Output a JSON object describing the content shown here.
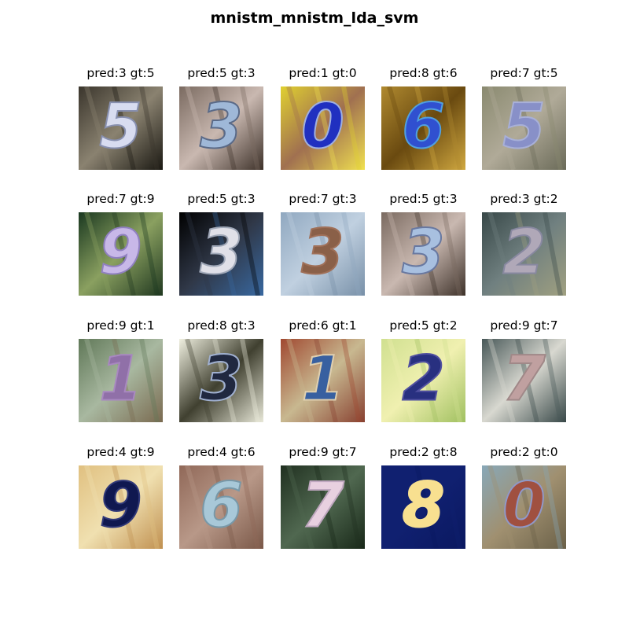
{
  "title": "mnistm_mnistm_lda_svm",
  "samples": [
    {
      "label": "pred:3 gt:5",
      "digit": "5",
      "bg": [
        "#3a352c",
        "#8a8270",
        "#1a1812"
      ],
      "fg": "#d8dcf0",
      "stroke": "#8890b0"
    },
    {
      "label": "pred:5 gt:3",
      "digit": "3",
      "bg": [
        "#7a6a60",
        "#c9b8b0",
        "#3d3129"
      ],
      "fg": "#9fb8d8",
      "stroke": "#5a6a88"
    },
    {
      "label": "pred:1 gt:0",
      "digit": "0",
      "bg": [
        "#e0d030",
        "#a07050",
        "#f0e050"
      ],
      "fg": "#2030c0",
      "stroke": "#a0b0e0"
    },
    {
      "label": "pred:8 gt:6",
      "digit": "6",
      "bg": [
        "#b08a30",
        "#6a4a10",
        "#d0a840"
      ],
      "fg": "#3050d0",
      "stroke": "#50a0e0"
    },
    {
      "label": "pred:7 gt:5",
      "digit": "5",
      "bg": [
        "#8a8a70",
        "#b0aa98",
        "#6a6a58"
      ],
      "fg": "#8890c8",
      "stroke": "#a8b0d8"
    },
    {
      "label": "pred:7 gt:9",
      "digit": "9",
      "bg": [
        "#1a3820",
        "#8aa060",
        "#203820"
      ],
      "fg": "#c8b8e8",
      "stroke": "#9080c0"
    },
    {
      "label": "pred:5 gt:3",
      "digit": "3",
      "bg": [
        "#000000",
        "#303848",
        "#3868a0"
      ],
      "fg": "#e0e0e8",
      "stroke": "#a0a8b8"
    },
    {
      "label": "pred:7 gt:3",
      "digit": "3",
      "bg": [
        "#90a8c0",
        "#c0d0e0",
        "#7890a8"
      ],
      "fg": "#8a6048",
      "stroke": "#a07058"
    },
    {
      "label": "pred:5 gt:3",
      "digit": "3",
      "bg": [
        "#7a6a60",
        "#c9b8b0",
        "#3d3129"
      ],
      "fg": "#a8c0e0",
      "stroke": "#6878a0"
    },
    {
      "label": "pred:3 gt:2",
      "digit": "2",
      "bg": [
        "#384848",
        "#708080",
        "#a0a080"
      ],
      "fg": "#b0a8b8",
      "stroke": "#8888a0"
    },
    {
      "label": "pred:9 gt:1",
      "digit": "1",
      "bg": [
        "#607858",
        "#a8b8a0",
        "#7a6a50"
      ],
      "fg": "#9070a8",
      "stroke": "#a888c0"
    },
    {
      "label": "pred:8 gt:3",
      "digit": "3",
      "bg": [
        "#f0f0e0",
        "#404030",
        "#e8e8d8"
      ],
      "fg": "#202840",
      "stroke": "#a0b0d0"
    },
    {
      "label": "pred:6 gt:1",
      "digit": "1",
      "bg": [
        "#a04830",
        "#c8b890",
        "#884030"
      ],
      "fg": "#3860a0",
      "stroke": "#e0d0b0"
    },
    {
      "label": "pred:5 gt:2",
      "digit": "2",
      "bg": [
        "#d0e090",
        "#f0f0b0",
        "#a0c060"
      ],
      "fg": "#283080",
      "stroke": "#5050a0"
    },
    {
      "label": "pred:9 gt:7",
      "digit": "7",
      "bg": [
        "#485858",
        "#d8d8d0",
        "#384848"
      ],
      "fg": "#c0a0a0",
      "stroke": "#a08888"
    },
    {
      "label": "pred:4 gt:9",
      "digit": "9",
      "bg": [
        "#e0c080",
        "#f0e0b0",
        "#c09050"
      ],
      "fg": "#101850",
      "stroke": "#303878"
    },
    {
      "label": "pred:4 gt:6",
      "digit": "6",
      "bg": [
        "#906858",
        "#b89888",
        "#7a5848"
      ],
      "fg": "#a8c8d8",
      "stroke": "#7898a8"
    },
    {
      "label": "pred:9 gt:7",
      "digit": "7",
      "bg": [
        "#203020",
        "#506850",
        "#182818"
      ],
      "fg": "#e8d0e0",
      "stroke": "#c0a8c0"
    },
    {
      "label": "pred:2 gt:8",
      "digit": "8",
      "bg": [
        "#102070",
        "#102070",
        "#0a1860"
      ],
      "fg": "#f8e090",
      "stroke": "#f8e090"
    },
    {
      "label": "pred:2 gt:0",
      "digit": "0",
      "bg": [
        "#88a8b8",
        "#a09070",
        "#6a6048"
      ],
      "fg": "#a05040",
      "stroke": "#9098c8"
    }
  ]
}
